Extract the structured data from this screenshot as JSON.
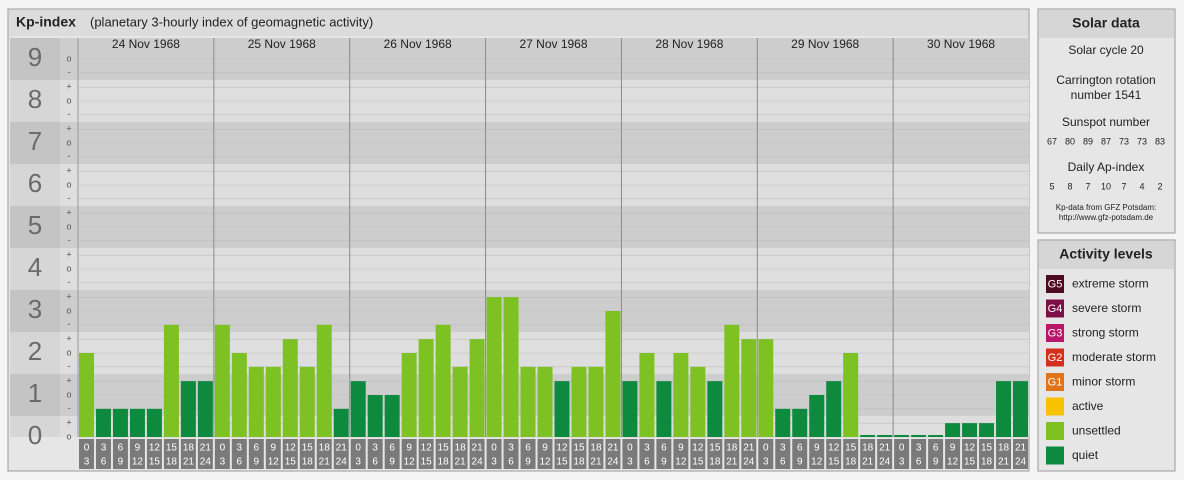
{
  "chart_data": {
    "type": "bar",
    "title": "Kp-index",
    "subtitle": "(planetary 3-hourly index of geomagnetic activity)",
    "days": [
      "24 Nov 1968",
      "25 Nov 1968",
      "26 Nov 1968",
      "27 Nov 1968",
      "28 Nov 1968",
      "29 Nov 1968",
      "30 Nov 1968"
    ],
    "intervals": [
      [
        "0",
        "3"
      ],
      [
        "3",
        "6"
      ],
      [
        "6",
        "9"
      ],
      [
        "9",
        "12"
      ],
      [
        "12",
        "15"
      ],
      [
        "15",
        "18"
      ],
      [
        "18",
        "21"
      ],
      [
        "21",
        "24"
      ]
    ],
    "values": [
      [
        2,
        0.67,
        0.67,
        0.67,
        0.67,
        2.67,
        1.33,
        1.33
      ],
      [
        2.67,
        2,
        1.67,
        1.67,
        2.33,
        1.67,
        2.67,
        0.67
      ],
      [
        1.33,
        1,
        1,
        2,
        2.33,
        2.67,
        1.67,
        2.33
      ],
      [
        3.33,
        3.33,
        1.67,
        1.67,
        1.33,
        1.67,
        1.67,
        3
      ],
      [
        1.33,
        2,
        1.33,
        2,
        1.67,
        1.33,
        2.67,
        2.33
      ],
      [
        2.33,
        0.67,
        0.67,
        1,
        1.33,
        2,
        0,
        0
      ],
      [
        0,
        0,
        0,
        0.33,
        0.33,
        0.33,
        1.33,
        1.33
      ]
    ],
    "colors": [
      [
        "#7dc122",
        "#0e8a3e",
        "#0e8a3e",
        "#0e8a3e",
        "#0e8a3e",
        "#7dc122",
        "#0e8a3e",
        "#0e8a3e"
      ],
      [
        "#7dc122",
        "#7dc122",
        "#7dc122",
        "#7dc122",
        "#7dc122",
        "#7dc122",
        "#7dc122",
        "#0e8a3e"
      ],
      [
        "#0e8a3e",
        "#0e8a3e",
        "#0e8a3e",
        "#7dc122",
        "#7dc122",
        "#7dc122",
        "#7dc122",
        "#7dc122"
      ],
      [
        "#7dc122",
        "#7dc122",
        "#7dc122",
        "#7dc122",
        "#0e8a3e",
        "#7dc122",
        "#7dc122",
        "#7dc122"
      ],
      [
        "#0e8a3e",
        "#7dc122",
        "#0e8a3e",
        "#7dc122",
        "#7dc122",
        "#0e8a3e",
        "#7dc122",
        "#7dc122"
      ],
      [
        "#7dc122",
        "#0e8a3e",
        "#0e8a3e",
        "#0e8a3e",
        "#0e8a3e",
        "#7dc122",
        "#0e8a3e",
        "#0e8a3e"
      ],
      [
        "#0e8a3e",
        "#0e8a3e",
        "#0e8a3e",
        "#0e8a3e",
        "#0e8a3e",
        "#0e8a3e",
        "#0e8a3e",
        "#0e8a3e"
      ]
    ],
    "ylim": [
      0,
      9.5
    ],
    "yticks": [
      0,
      1,
      2,
      3,
      4,
      5,
      6,
      7,
      8,
      9
    ],
    "yminor_ticks": [
      {
        "value": 0,
        "label": "o"
      },
      {
        "value": 0.33,
        "label": "+"
      },
      {
        "value": 0.67,
        "label": "-"
      },
      {
        "value": 1,
        "label": "o"
      },
      {
        "value": 1.33,
        "label": "+"
      },
      {
        "value": 1.67,
        "label": "-"
      },
      {
        "value": 2,
        "label": "o"
      },
      {
        "value": 2.33,
        "label": "+"
      },
      {
        "value": 2.67,
        "label": "-"
      },
      {
        "value": 3,
        "label": "o"
      },
      {
        "value": 3.33,
        "label": "+"
      },
      {
        "value": 3.67,
        "label": "-"
      },
      {
        "value": 4,
        "label": "o"
      },
      {
        "value": 4.33,
        "label": "+"
      },
      {
        "value": 4.67,
        "label": "-"
      },
      {
        "value": 5,
        "label": "o"
      },
      {
        "value": 5.33,
        "label": "+"
      },
      {
        "value": 5.67,
        "label": "-"
      },
      {
        "value": 6,
        "label": "o"
      },
      {
        "value": 6.33,
        "label": "+"
      },
      {
        "value": 6.67,
        "label": "-"
      },
      {
        "value": 7,
        "label": "o"
      },
      {
        "value": 7.33,
        "label": "+"
      },
      {
        "value": 7.67,
        "label": "-"
      },
      {
        "value": 8,
        "label": "o"
      },
      {
        "value": 8.33,
        "label": "+"
      },
      {
        "value": 8.67,
        "label": "-"
      },
      {
        "value": 9,
        "label": "o"
      }
    ],
    "grid": true
  },
  "solar_data": {
    "title": "Solar data",
    "cycle": "Solar cycle 20",
    "carrington": [
      "Carrington rotation",
      "number 1541"
    ],
    "sunspot_title": "Sunspot number",
    "sunspots": [
      67,
      80,
      89,
      87,
      73,
      73,
      83
    ],
    "ap_title": "Daily Ap-index",
    "ap": [
      5,
      8,
      7,
      10,
      7,
      4,
      2
    ],
    "source": [
      "Kp-data from GFZ Potsdam:",
      "http://www.gfz-potsdam.de"
    ]
  },
  "activity_levels": {
    "title": "Activity levels",
    "items": [
      {
        "code": "G5",
        "label": "extreme storm",
        "color": "#4f0a24"
      },
      {
        "code": "G4",
        "label": "severe storm",
        "color": "#7a1045"
      },
      {
        "code": "G3",
        "label": "strong storm",
        "color": "#b8176a"
      },
      {
        "code": "G2",
        "label": "moderate storm",
        "color": "#d5301e"
      },
      {
        "code": "G1",
        "label": "minor storm",
        "color": "#e0741a"
      },
      {
        "code": "",
        "label": "active",
        "color": "#f7c200"
      },
      {
        "code": "",
        "label": "unsettled",
        "color": "#7dc122"
      },
      {
        "code": "",
        "label": "quiet",
        "color": "#0e8a3e"
      }
    ]
  }
}
